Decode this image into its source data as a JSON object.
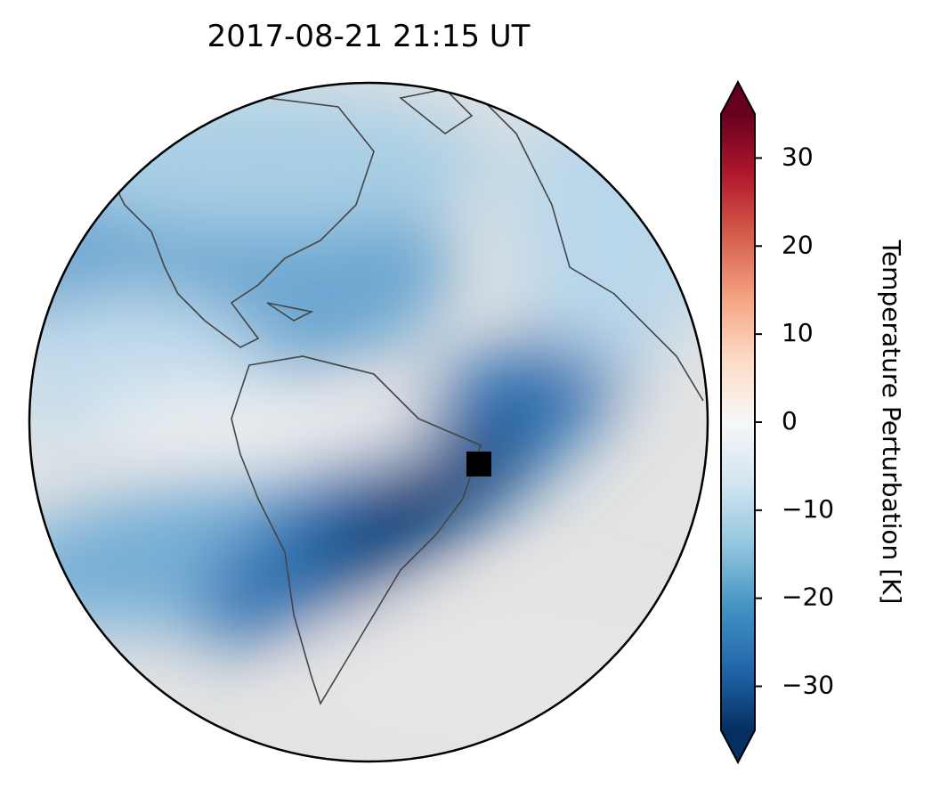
{
  "chart_data": {
    "type": "map",
    "title": "2017-08-21  21:15 UT",
    "colorbar": {
      "label": "Temperature Perturbation [K]",
      "lim": [
        -35,
        35
      ],
      "extend": "both",
      "colormap": [
        "#053061",
        "#2166ac",
        "#4393c3",
        "#92c5de",
        "#d1e5f0",
        "#f7f7f7",
        "#fddbc7",
        "#f4a582",
        "#d6604d",
        "#b2182b",
        "#67001f"
      ],
      "ticks": [
        {
          "value": -30,
          "label": "−30"
        },
        {
          "value": -20,
          "label": "−20"
        },
        {
          "value": -10,
          "label": "−10"
        },
        0,
        10,
        20,
        30
      ]
    }
  }
}
